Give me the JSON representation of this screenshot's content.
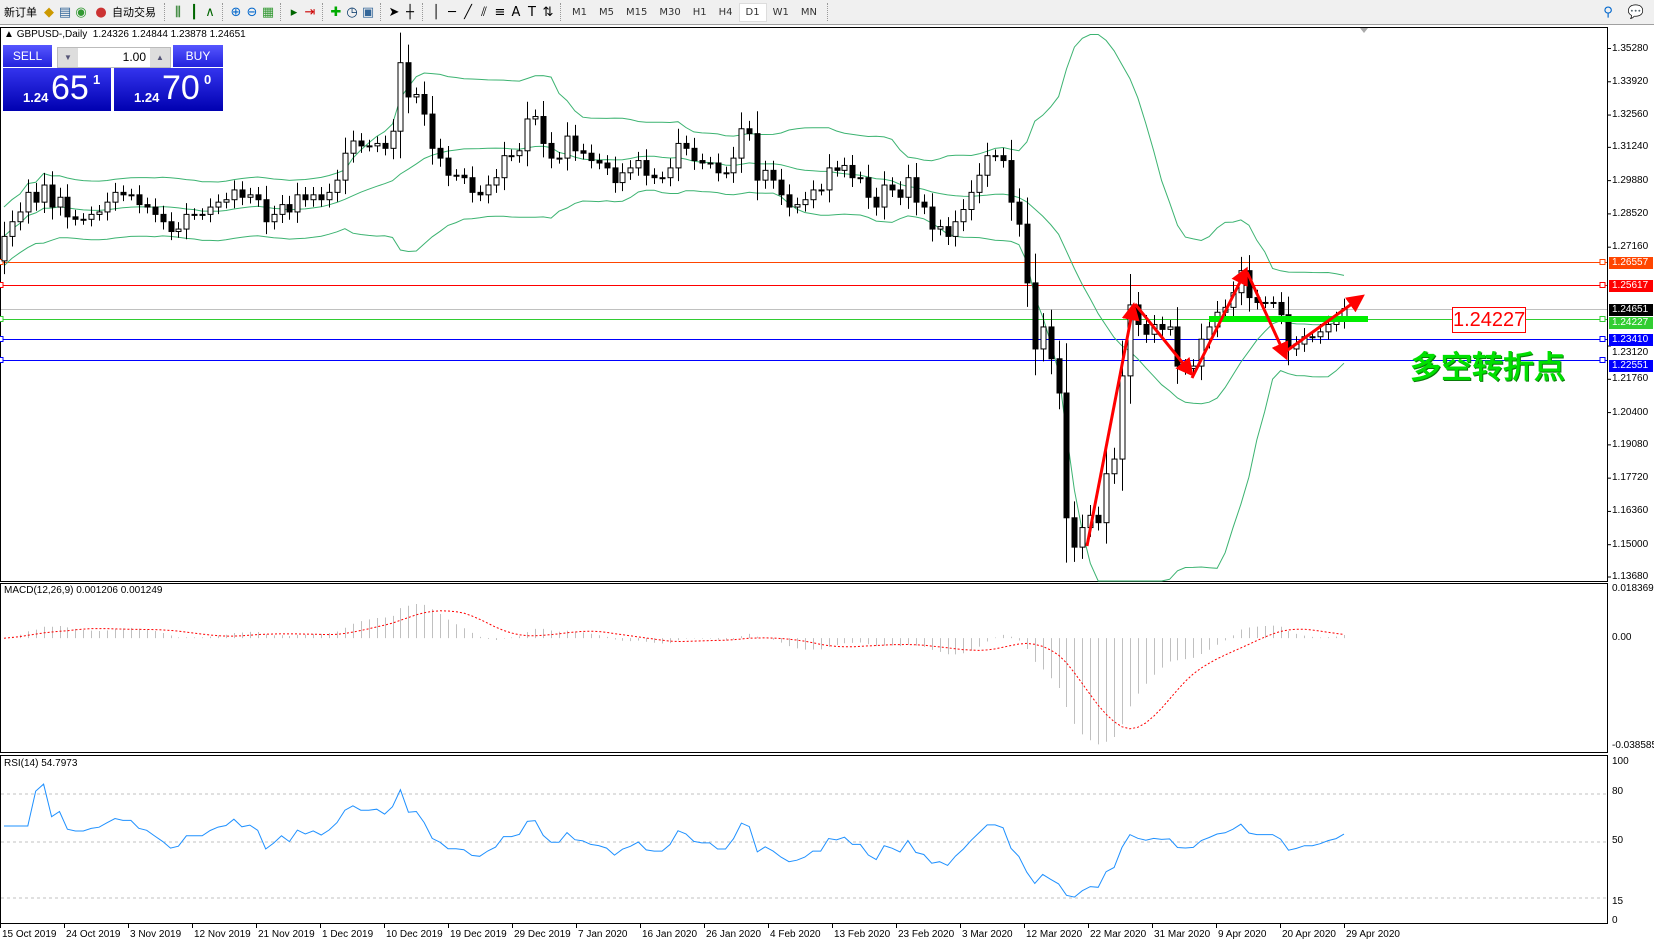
{
  "toolbar": {
    "new_order": "新订单",
    "auto_trading": "自动交易",
    "icons": [
      "new-order-icon",
      "market-watch-icon",
      "data-window-icon",
      "signals-icon",
      "auto-trading-icon",
      "bar-chart-icon",
      "candlestick-icon",
      "line-chart-icon",
      "zoom-in-icon",
      "zoom-out-icon",
      "tile-windows-icon",
      "auto-scroll-icon",
      "chart-shift-icon",
      "indicators-icon",
      "periods-icon",
      "templates-icon",
      "cursor-icon",
      "crosshair-icon",
      "vertical-line-icon",
      "horizontal-line-icon",
      "trendline-icon",
      "equidistant-channel-icon",
      "fibonacci-icon",
      "text-icon",
      "text-label-icon",
      "arrows-icon"
    ],
    "text_tool": "A",
    "timeframes": [
      "M1",
      "M5",
      "M15",
      "M30",
      "H1",
      "H4",
      "D1",
      "W1",
      "MN"
    ],
    "selected_timeframe": "D1"
  },
  "chart_header": "GBPUSD-,Daily  1.24326 1.24844 1.23878 1.24651",
  "trade_panel": {
    "sell_label": "SELL",
    "buy_label": "BUY",
    "lot": "1.00",
    "sell_prefix": "1.24",
    "sell_big": "65",
    "sell_sup": "1",
    "buy_prefix": "1.24",
    "buy_big": "70",
    "buy_sup": "0"
  },
  "price_axis": [
    "1.35280",
    "1.33920",
    "1.32560",
    "1.31240",
    "1.29880",
    "1.28520",
    "1.27160",
    "1.23120",
    "1.21760",
    "1.20400",
    "1.19080",
    "1.17720",
    "1.16360",
    "1.15000",
    "1.13680"
  ],
  "levels": [
    {
      "value": "1.26557",
      "color": "#ff4500"
    },
    {
      "value": "1.25617",
      "color": "#ff0000"
    },
    {
      "value": "1.24651",
      "color": "#000000",
      "line": "#c0c0c0"
    },
    {
      "value": "1.24227",
      "color": "#32cd32"
    },
    {
      "value": "1.23410",
      "color": "#0000ff"
    },
    {
      "value": "1.22551",
      "color": "#0000ff"
    }
  ],
  "annotations": {
    "price_box": "1.24227",
    "text": "多空转折点",
    "text_color": "#00e000",
    "arrow_color": "#ff0000"
  },
  "macd": {
    "label": "MACD(12,26,9) 0.001206 0.001249",
    "max": "0.018369",
    "zero": "0.00",
    "min": "-0.038585"
  },
  "rsi": {
    "label": "RSI(14) 54.7973",
    "levels": [
      "100",
      "80",
      "50",
      "15",
      "0"
    ]
  },
  "time_axis": [
    "15 Oct 2019",
    "24 Oct 2019",
    "3 Nov 2019",
    "12 Nov 2019",
    "21 Nov 2019",
    "1 Dec 2019",
    "10 Dec 2019",
    "19 Dec 2019",
    "29 Dec 2019",
    "7 Jan 2020",
    "16 Jan 2020",
    "26 Jan 2020",
    "4 Feb 2020",
    "13 Feb 2020",
    "23 Feb 2020",
    "3 Mar 2020",
    "12 Mar 2020",
    "22 Mar 2020",
    "31 Mar 2020",
    "9 Apr 2020",
    "20 Apr 2020",
    "29 Apr 2020"
  ],
  "colors": {
    "bollinger": "#3cb371",
    "rsi": "#1e90ff",
    "macd_hist": "#c0c0c0",
    "macd_signal": "#ff0000"
  },
  "chart_data": {
    "type": "candlestick",
    "symbol": "GBPUSD-",
    "timeframe": "Daily",
    "ylim": [
      1.1368,
      1.3528
    ],
    "first_open": 1.266,
    "closes": [
      1.276,
      1.282,
      1.286,
      1.294,
      1.29,
      1.297,
      1.288,
      1.292,
      1.284,
      1.283,
      1.283,
      1.285,
      1.286,
      1.29,
      1.294,
      1.293,
      1.293,
      1.289,
      1.288,
      1.285,
      1.282,
      1.278,
      1.279,
      1.285,
      1.285,
      1.285,
      1.288,
      1.29,
      1.291,
      1.295,
      1.292,
      1.293,
      1.291,
      1.282,
      1.285,
      1.289,
      1.286,
      1.293,
      1.291,
      1.293,
      1.291,
      1.294,
      1.299,
      1.31,
      1.315,
      1.313,
      1.313,
      1.314,
      1.312,
      1.319,
      1.347,
      1.333,
      1.334,
      1.326,
      1.312,
      1.308,
      1.301,
      1.301,
      1.3,
      1.294,
      1.293,
      1.297,
      1.3,
      1.309,
      1.309,
      1.311,
      1.324,
      1.325,
      1.314,
      1.308,
      1.308,
      1.317,
      1.311,
      1.31,
      1.307,
      1.306,
      1.304,
      1.298,
      1.302,
      1.304,
      1.307,
      1.301,
      1.3,
      1.3,
      1.304,
      1.314,
      1.312,
      1.307,
      1.306,
      1.306,
      1.302,
      1.302,
      1.308,
      1.32,
      1.318,
      1.299,
      1.303,
      1.299,
      1.293,
      1.288,
      1.289,
      1.291,
      1.295,
      1.295,
      1.304,
      1.303,
      1.305,
      1.3,
      1.3,
      1.292,
      1.288,
      1.297,
      1.295,
      1.292,
      1.3,
      1.29,
      1.288,
      1.279,
      1.28,
      1.276,
      1.282,
      1.287,
      1.294,
      1.301,
      1.309,
      1.309,
      1.307,
      1.29,
      1.281,
      1.257,
      1.23,
      1.239,
      1.226,
      1.212,
      1.161,
      1.149,
      1.157,
      1.162,
      1.159,
      1.179,
      1.185,
      1.219,
      1.248,
      1.24,
      1.236,
      1.24,
      1.238,
      1.239,
      1.223,
      1.222,
      1.223,
      1.234,
      1.239,
      1.245,
      1.247,
      1.253,
      1.262,
      1.251,
      1.249,
      1.249,
      1.249,
      1.244,
      1.23,
      1.232,
      1.235,
      1.235,
      1.237,
      1.24,
      1.242,
      1.2465
    ]
  }
}
